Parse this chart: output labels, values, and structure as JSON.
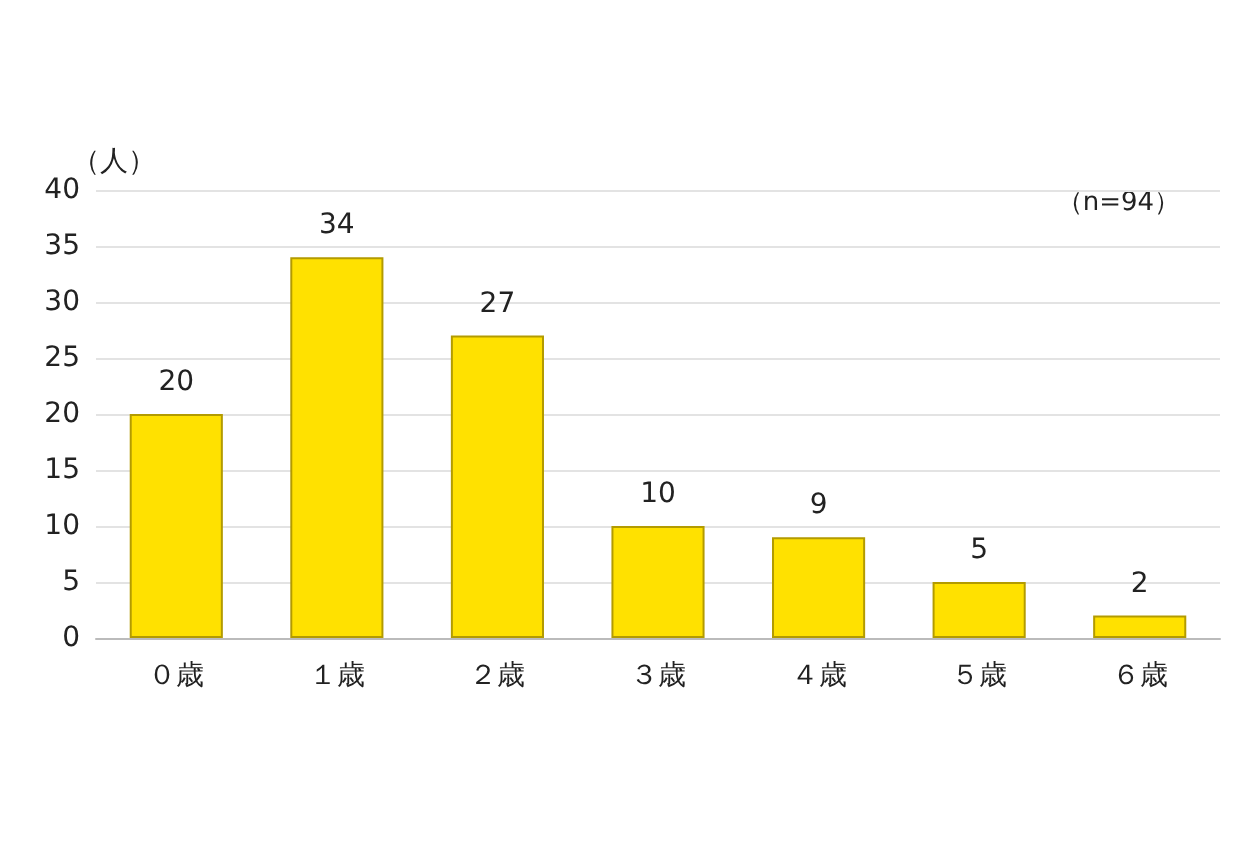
{
  "chart_data": {
    "type": "bar",
    "ylabel": "（人）",
    "annotations": [
      "（n=94）"
    ],
    "categories": [
      "０歳",
      "１歳",
      "２歳",
      "３歳",
      "４歳",
      "５歳",
      "６歳"
    ],
    "values": [
      20,
      34,
      27,
      10,
      9,
      5,
      2
    ],
    "color": "#ffe100",
    "ylim": [
      0,
      40
    ],
    "yticks": [
      0,
      5,
      10,
      15,
      20,
      25,
      30,
      35,
      40
    ],
    "grid": "y",
    "data_labels": true
  }
}
